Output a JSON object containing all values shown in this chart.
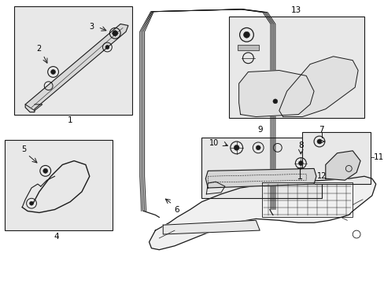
{
  "background_color": "#ffffff",
  "line_color": "#1a1a1a",
  "box_bg": "#e8e8e8",
  "fig_width": 4.89,
  "fig_height": 3.6,
  "dpi": 100
}
